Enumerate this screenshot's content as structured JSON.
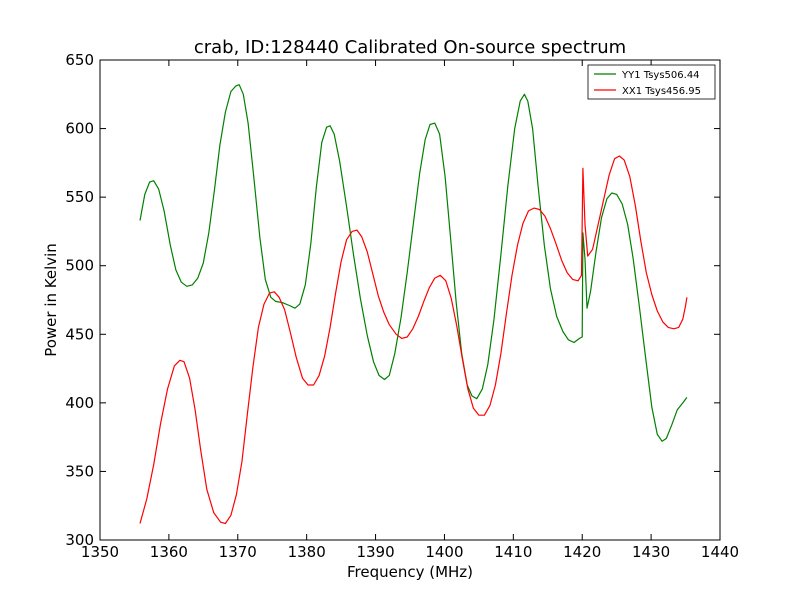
{
  "chart_data": {
    "type": "line",
    "title": "crab, ID:128440 Calibrated On-source spectrum",
    "xlabel": "Frequency (MHz)",
    "ylabel": "Power in Kelvin",
    "xlim": [
      1350,
      1440
    ],
    "ylim": [
      300,
      650
    ],
    "xticks": [
      1350,
      1360,
      1370,
      1380,
      1390,
      1400,
      1410,
      1420,
      1430,
      1440
    ],
    "yticks": [
      300,
      350,
      400,
      450,
      500,
      550,
      600,
      650
    ],
    "grid": false,
    "legend_position": "top-right",
    "series": [
      {
        "name": "YY1 Tsys506.44",
        "color": "#008000",
        "points": [
          [
            1355.8,
            533
          ],
          [
            1356.5,
            552
          ],
          [
            1357.2,
            561
          ],
          [
            1357.8,
            562
          ],
          [
            1358.5,
            556
          ],
          [
            1359.3,
            540
          ],
          [
            1360.2,
            515
          ],
          [
            1361.0,
            497
          ],
          [
            1361.8,
            488
          ],
          [
            1362.6,
            485
          ],
          [
            1363.4,
            486
          ],
          [
            1364.2,
            491
          ],
          [
            1365.0,
            502
          ],
          [
            1365.8,
            524
          ],
          [
            1366.6,
            555
          ],
          [
            1367.4,
            588
          ],
          [
            1368.2,
            612
          ],
          [
            1369.0,
            627
          ],
          [
            1369.7,
            631
          ],
          [
            1370.2,
            632
          ],
          [
            1370.8,
            625
          ],
          [
            1371.5,
            604
          ],
          [
            1372.3,
            566
          ],
          [
            1373.2,
            521
          ],
          [
            1374.0,
            490
          ],
          [
            1374.8,
            477
          ],
          [
            1375.5,
            474
          ],
          [
            1376.5,
            473
          ],
          [
            1377.5,
            471
          ],
          [
            1378.3,
            469
          ],
          [
            1379.0,
            472
          ],
          [
            1379.8,
            486
          ],
          [
            1380.6,
            516
          ],
          [
            1381.4,
            557
          ],
          [
            1382.2,
            590
          ],
          [
            1382.9,
            601
          ],
          [
            1383.4,
            602
          ],
          [
            1384.0,
            596
          ],
          [
            1384.8,
            576
          ],
          [
            1385.8,
            543
          ],
          [
            1386.8,
            508
          ],
          [
            1387.8,
            476
          ],
          [
            1388.8,
            449
          ],
          [
            1389.7,
            430
          ],
          [
            1390.5,
            420
          ],
          [
            1391.3,
            417
          ],
          [
            1392.0,
            420
          ],
          [
            1392.8,
            436
          ],
          [
            1393.7,
            462
          ],
          [
            1394.6,
            495
          ],
          [
            1395.5,
            531
          ],
          [
            1396.4,
            567
          ],
          [
            1397.2,
            592
          ],
          [
            1397.9,
            603
          ],
          [
            1398.6,
            604
          ],
          [
            1399.3,
            596
          ],
          [
            1400.1,
            565
          ],
          [
            1400.9,
            520
          ],
          [
            1401.7,
            473
          ],
          [
            1402.5,
            436
          ],
          [
            1403.3,
            413
          ],
          [
            1404.0,
            405
          ],
          [
            1404.7,
            403
          ],
          [
            1405.5,
            410
          ],
          [
            1406.3,
            428
          ],
          [
            1407.2,
            461
          ],
          [
            1408.2,
            508
          ],
          [
            1409.2,
            558
          ],
          [
            1410.2,
            600
          ],
          [
            1411.0,
            620
          ],
          [
            1411.6,
            625
          ],
          [
            1412.1,
            620
          ],
          [
            1412.8,
            600
          ],
          [
            1413.6,
            558
          ],
          [
            1414.5,
            515
          ],
          [
            1415.4,
            483
          ],
          [
            1416.3,
            463
          ],
          [
            1417.2,
            452
          ],
          [
            1418.0,
            446
          ],
          [
            1418.8,
            444
          ],
          [
            1419.6,
            447
          ],
          [
            1420.0,
            448
          ],
          [
            1420.1,
            524
          ],
          [
            1420.4,
            505
          ],
          [
            1420.7,
            469
          ],
          [
            1421.2,
            481
          ],
          [
            1422.0,
            510
          ],
          [
            1422.8,
            535
          ],
          [
            1423.6,
            549
          ],
          [
            1424.3,
            553
          ],
          [
            1425.0,
            552
          ],
          [
            1425.8,
            545
          ],
          [
            1426.6,
            530
          ],
          [
            1427.4,
            505
          ],
          [
            1428.3,
            470
          ],
          [
            1429.2,
            433
          ],
          [
            1430.1,
            397
          ],
          [
            1430.9,
            377
          ],
          [
            1431.6,
            372
          ],
          [
            1432.2,
            374
          ],
          [
            1433.0,
            384
          ],
          [
            1433.8,
            395
          ],
          [
            1434.6,
            400
          ],
          [
            1435.2,
            404
          ]
        ]
      },
      {
        "name": "XX1 Tsys456.95",
        "color": "#ff0000",
        "points": [
          [
            1355.8,
            312
          ],
          [
            1356.8,
            330
          ],
          [
            1357.8,
            355
          ],
          [
            1358.8,
            385
          ],
          [
            1359.8,
            410
          ],
          [
            1360.8,
            427
          ],
          [
            1361.6,
            431
          ],
          [
            1362.2,
            430
          ],
          [
            1363.0,
            418
          ],
          [
            1363.8,
            395
          ],
          [
            1364.6,
            366
          ],
          [
            1365.5,
            337
          ],
          [
            1366.5,
            320
          ],
          [
            1367.5,
            313
          ],
          [
            1368.2,
            312
          ],
          [
            1369.0,
            318
          ],
          [
            1369.8,
            333
          ],
          [
            1370.6,
            357
          ],
          [
            1371.4,
            392
          ],
          [
            1372.2,
            426
          ],
          [
            1373.0,
            455
          ],
          [
            1373.8,
            472
          ],
          [
            1374.6,
            480
          ],
          [
            1375.3,
            481
          ],
          [
            1376.0,
            477
          ],
          [
            1376.8,
            468
          ],
          [
            1377.6,
            452
          ],
          [
            1378.5,
            433
          ],
          [
            1379.4,
            418
          ],
          [
            1380.2,
            413
          ],
          [
            1381.0,
            413
          ],
          [
            1381.8,
            420
          ],
          [
            1382.6,
            434
          ],
          [
            1383.4,
            455
          ],
          [
            1384.2,
            480
          ],
          [
            1385.0,
            503
          ],
          [
            1385.8,
            519
          ],
          [
            1386.6,
            525
          ],
          [
            1387.3,
            526
          ],
          [
            1388.0,
            521
          ],
          [
            1388.8,
            510
          ],
          [
            1389.6,
            494
          ],
          [
            1390.4,
            478
          ],
          [
            1391.2,
            466
          ],
          [
            1392.0,
            457
          ],
          [
            1393.0,
            450
          ],
          [
            1393.8,
            447
          ],
          [
            1394.6,
            448
          ],
          [
            1395.4,
            454
          ],
          [
            1396.2,
            463
          ],
          [
            1397.0,
            474
          ],
          [
            1397.8,
            484
          ],
          [
            1398.6,
            491
          ],
          [
            1399.4,
            493
          ],
          [
            1400.2,
            489
          ],
          [
            1401.0,
            476
          ],
          [
            1401.8,
            456
          ],
          [
            1402.6,
            432
          ],
          [
            1403.4,
            410
          ],
          [
            1404.2,
            396
          ],
          [
            1405.0,
            391
          ],
          [
            1405.8,
            391
          ],
          [
            1406.6,
            398
          ],
          [
            1407.4,
            413
          ],
          [
            1408.2,
            436
          ],
          [
            1409.0,
            465
          ],
          [
            1409.8,
            493
          ],
          [
            1410.6,
            515
          ],
          [
            1411.4,
            531
          ],
          [
            1412.2,
            540
          ],
          [
            1413.0,
            542
          ],
          [
            1413.8,
            541
          ],
          [
            1414.6,
            536
          ],
          [
            1415.4,
            527
          ],
          [
            1416.2,
            516
          ],
          [
            1417.0,
            504
          ],
          [
            1417.8,
            495
          ],
          [
            1418.6,
            490
          ],
          [
            1419.4,
            489
          ],
          [
            1419.9,
            493
          ],
          [
            1420.1,
            571
          ],
          [
            1420.4,
            530
          ],
          [
            1420.8,
            507
          ],
          [
            1421.5,
            512
          ],
          [
            1422.3,
            530
          ],
          [
            1423.1,
            548
          ],
          [
            1423.9,
            566
          ],
          [
            1424.7,
            578
          ],
          [
            1425.4,
            580
          ],
          [
            1426.1,
            577
          ],
          [
            1426.9,
            565
          ],
          [
            1427.7,
            544
          ],
          [
            1428.5,
            518
          ],
          [
            1429.3,
            495
          ],
          [
            1430.1,
            479
          ],
          [
            1430.9,
            467
          ],
          [
            1431.7,
            459
          ],
          [
            1432.5,
            455
          ],
          [
            1433.3,
            454
          ],
          [
            1434.0,
            455
          ],
          [
            1434.6,
            461
          ],
          [
            1435.0,
            471
          ],
          [
            1435.2,
            477
          ]
        ]
      }
    ]
  }
}
